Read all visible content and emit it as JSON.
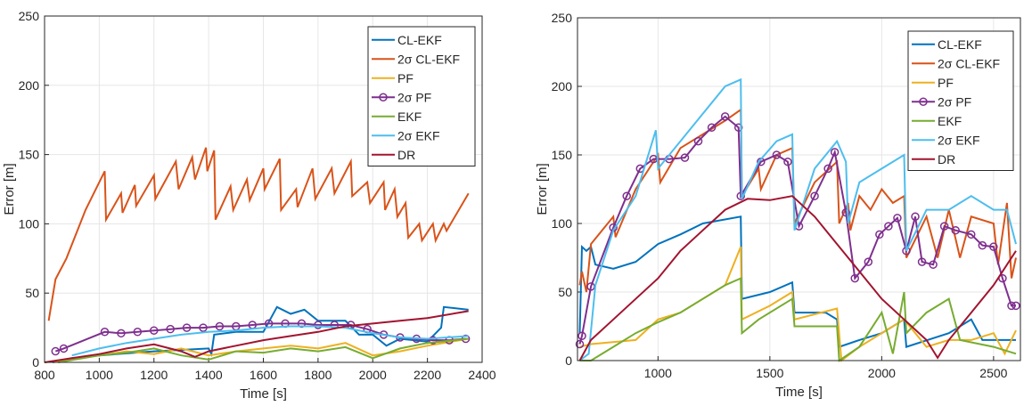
{
  "chart_data": [
    {
      "type": "line",
      "xlabel": "Time [s]",
      "ylabel": "Error [m]",
      "xlim": [
        800,
        2400
      ],
      "ylim": [
        0,
        250
      ],
      "xticks": [
        800,
        1000,
        1200,
        1400,
        1600,
        1800,
        2000,
        2200,
        2400
      ],
      "yticks": [
        0,
        50,
        100,
        150,
        200,
        250
      ],
      "grid": true,
      "legend": "upper right",
      "series": [
        {
          "name": "CL-EKF",
          "color": "#0072bd",
          "x": [
            830,
            900,
            1000,
            1200,
            1400,
            1410,
            1420,
            1500,
            1600,
            1650,
            1700,
            1750,
            1800,
            1900,
            1950,
            2000,
            2050,
            2100,
            2200,
            2250,
            2260,
            2350
          ],
          "values": [
            0,
            3,
            5,
            8,
            10,
            6,
            20,
            22,
            22,
            40,
            35,
            38,
            30,
            30,
            20,
            20,
            12,
            17,
            15,
            25,
            40,
            38
          ]
        },
        {
          "name": "2σ CL-EKF",
          "color": "#d95319",
          "x": [
            815,
            840,
            880,
            950,
            1020,
            1025,
            1080,
            1085,
            1130,
            1135,
            1200,
            1205,
            1280,
            1290,
            1340,
            1350,
            1390,
            1395,
            1420,
            1425,
            1480,
            1490,
            1540,
            1550,
            1600,
            1605,
            1660,
            1665,
            1720,
            1725,
            1780,
            1790,
            1850,
            1860,
            1920,
            1925,
            1980,
            1990,
            2040,
            2045,
            2080,
            2090,
            2120,
            2130,
            2170,
            2180,
            2220,
            2230,
            2260,
            2270,
            2350
          ],
          "values": [
            30,
            60,
            75,
            110,
            138,
            103,
            122,
            108,
            128,
            113,
            135,
            118,
            145,
            125,
            148,
            132,
            155,
            138,
            153,
            103,
            127,
            110,
            132,
            117,
            140,
            125,
            147,
            110,
            125,
            112,
            140,
            118,
            140,
            122,
            145,
            120,
            130,
            115,
            130,
            110,
            125,
            105,
            115,
            90,
            100,
            88,
            100,
            88,
            100,
            95,
            122
          ]
        },
        {
          "name": "PF",
          "color": "#edb120",
          "x": [
            800,
            900,
            1000,
            1100,
            1200,
            1300,
            1400,
            1500,
            1600,
            1700,
            1800,
            1900,
            2000,
            2100,
            2200,
            2350
          ],
          "values": [
            0,
            2,
            5,
            8,
            6,
            10,
            5,
            8,
            10,
            12,
            10,
            14,
            5,
            8,
            12,
            17
          ]
        },
        {
          "name": "2σ PF",
          "color": "#7e2f8e",
          "marker": "o",
          "x": [
            840,
            870,
            1020,
            1080,
            1140,
            1200,
            1260,
            1320,
            1380,
            1440,
            1500,
            1560,
            1620,
            1680,
            1740,
            1800,
            1860,
            1920,
            1980,
            2040,
            2100,
            2160,
            2220,
            2280,
            2340
          ],
          "values": [
            8,
            10,
            22,
            21,
            22,
            23,
            24,
            25,
            25,
            26,
            26,
            27,
            28,
            28,
            28,
            27,
            27,
            27,
            24,
            20,
            18,
            17,
            16,
            16,
            17
          ]
        },
        {
          "name": "EKF",
          "color": "#77ac30",
          "x": [
            850,
            1000,
            1100,
            1200,
            1300,
            1400,
            1500,
            1600,
            1700,
            1800,
            1900,
            2000,
            2100,
            2200,
            2350
          ],
          "values": [
            0,
            5,
            7,
            10,
            5,
            2,
            8,
            7,
            10,
            8,
            11,
            3,
            10,
            14,
            17
          ]
        },
        {
          "name": "2σ EKF",
          "color": "#4dbeee",
          "x": [
            900,
            1000,
            1100,
            1200,
            1300,
            1400,
            1500,
            1600,
            1700,
            1800,
            1900,
            2000,
            2100,
            2200,
            2350
          ],
          "values": [
            5,
            10,
            14,
            17,
            20,
            22,
            23,
            25,
            26,
            26,
            25,
            21,
            18,
            17,
            19
          ]
        },
        {
          "name": "DR",
          "color": "#a2142f",
          "x": [
            800,
            900,
            1000,
            1100,
            1200,
            1300,
            1350,
            1400,
            1500,
            1600,
            1700,
            1800,
            1900,
            2000,
            2100,
            2200,
            2350
          ],
          "values": [
            0,
            3,
            6,
            10,
            13,
            8,
            4,
            8,
            12,
            16,
            19,
            22,
            26,
            28,
            30,
            32,
            37
          ]
        }
      ]
    },
    {
      "type": "line",
      "xlabel": "Time [s]",
      "ylabel": "Error [m]",
      "xlim": [
        640,
        2620
      ],
      "ylim": [
        0,
        250
      ],
      "xticks": [
        1000,
        1500,
        2000,
        2500
      ],
      "yticks": [
        0,
        50,
        100,
        150,
        200,
        250
      ],
      "grid": true,
      "legend": "upper right",
      "series": [
        {
          "name": "CL-EKF",
          "color": "#0072bd",
          "x": [
            650,
            660,
            680,
            700,
            720,
            800,
            900,
            1000,
            1100,
            1200,
            1370,
            1375,
            1500,
            1600,
            1610,
            1750,
            1800,
            1810,
            1900,
            2000,
            2100,
            2110,
            2300,
            2400,
            2450,
            2600
          ],
          "values": [
            20,
            83,
            80,
            83,
            70,
            67,
            72,
            85,
            92,
            100,
            105,
            45,
            50,
            57,
            35,
            35,
            30,
            10,
            15,
            20,
            30,
            10,
            20,
            30,
            15,
            15
          ]
        },
        {
          "name": "2σ CL-EKF",
          "color": "#d95319",
          "x": [
            650,
            660,
            680,
            700,
            800,
            810,
            900,
            1000,
            1010,
            1100,
            1200,
            1300,
            1370,
            1375,
            1450,
            1460,
            1530,
            1600,
            1610,
            1700,
            1800,
            1810,
            1850,
            1860,
            1900,
            1950,
            2000,
            2050,
            2100,
            2110,
            2200,
            2250,
            2300,
            2350,
            2400,
            2500,
            2520,
            2560,
            2580,
            2600
          ],
          "values": [
            55,
            65,
            50,
            85,
            105,
            90,
            125,
            150,
            130,
            155,
            165,
            175,
            183,
            120,
            140,
            125,
            150,
            155,
            100,
            130,
            145,
            100,
            115,
            95,
            120,
            110,
            125,
            115,
            120,
            75,
            105,
            75,
            110,
            75,
            105,
            100,
            70,
            115,
            60,
            75
          ]
        },
        {
          "name": "PF",
          "color": "#edb120",
          "x": [
            650,
            700,
            900,
            1000,
            1100,
            1200,
            1300,
            1370,
            1375,
            1500,
            1600,
            1610,
            1800,
            1820,
            1900,
            2000,
            2100,
            2200,
            2300,
            2400,
            2500,
            2550,
            2600
          ],
          "values": [
            10,
            12,
            15,
            30,
            35,
            45,
            55,
            83,
            30,
            40,
            50,
            30,
            38,
            0,
            10,
            20,
            30,
            10,
            15,
            15,
            20,
            5,
            22
          ]
        },
        {
          "name": "2σ PF",
          "color": "#7e2f8e",
          "marker": "o",
          "x": [
            650,
            660,
            700,
            800,
            860,
            920,
            980,
            1050,
            1120,
            1180,
            1240,
            1300,
            1360,
            1370,
            1460,
            1530,
            1580,
            1630,
            1700,
            1760,
            1790,
            1840,
            1880,
            1940,
            1990,
            2030,
            2070,
            2110,
            2150,
            2180,
            2230,
            2280,
            2330,
            2400,
            2450,
            2500,
            2540,
            2580,
            2600
          ],
          "values": [
            12,
            18,
            54,
            97,
            120,
            140,
            147,
            147,
            148,
            160,
            170,
            178,
            170,
            120,
            145,
            150,
            145,
            98,
            120,
            140,
            152,
            108,
            60,
            72,
            92,
            98,
            104,
            80,
            105,
            72,
            70,
            98,
            95,
            92,
            84,
            83,
            60,
            40,
            40
          ]
        },
        {
          "name": "EKF",
          "color": "#77ac30",
          "x": [
            650,
            700,
            800,
            900,
            1000,
            1100,
            1200,
            1300,
            1370,
            1375,
            1450,
            1600,
            1610,
            1800,
            1810,
            1900,
            2000,
            2050,
            2100,
            2110,
            2200,
            2300,
            2350,
            2500,
            2600
          ],
          "values": [
            0,
            0,
            10,
            20,
            28,
            35,
            45,
            55,
            60,
            20,
            30,
            45,
            25,
            25,
            0,
            10,
            35,
            5,
            50,
            20,
            35,
            45,
            15,
            10,
            5
          ]
        },
        {
          "name": "2σ EKF",
          "color": "#4dbeee",
          "x": [
            650,
            690,
            720,
            800,
            900,
            990,
            1000,
            1100,
            1200,
            1300,
            1370,
            1375,
            1450,
            1530,
            1600,
            1610,
            1700,
            1800,
            1840,
            1850,
            1900,
            2000,
            2100,
            2110,
            2200,
            2300,
            2400,
            2500,
            2560,
            2600
          ],
          "values": [
            0,
            5,
            55,
            95,
            120,
            168,
            140,
            160,
            180,
            200,
            205,
            118,
            145,
            160,
            165,
            95,
            140,
            160,
            145,
            100,
            130,
            140,
            150,
            80,
            110,
            110,
            120,
            110,
            110,
            85
          ]
        },
        {
          "name": "DR",
          "color": "#a2142f",
          "x": [
            650,
            700,
            800,
            900,
            1000,
            1100,
            1200,
            1300,
            1400,
            1500,
            1600,
            1700,
            1800,
            1900,
            2000,
            2100,
            2200,
            2250,
            2300,
            2400,
            2500,
            2600
          ],
          "values": [
            0,
            15,
            30,
            45,
            60,
            80,
            95,
            110,
            118,
            117,
            120,
            105,
            85,
            65,
            45,
            30,
            15,
            2,
            15,
            35,
            55,
            80
          ]
        }
      ]
    }
  ]
}
